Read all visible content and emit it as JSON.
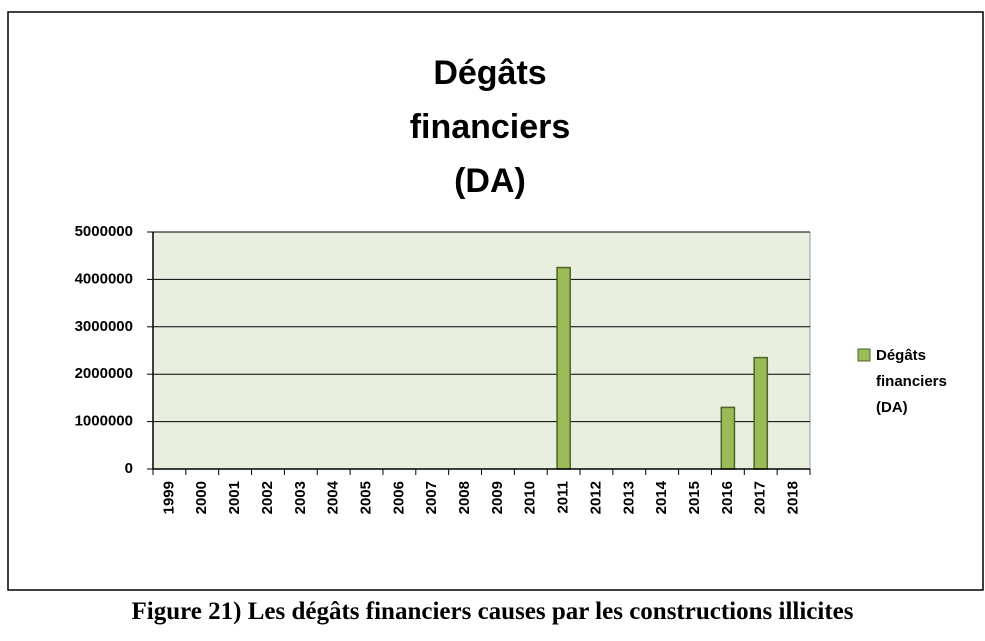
{
  "chart_data": {
    "type": "bar",
    "title": "Dégâts financiers (DA)",
    "categories": [
      "1999",
      "2000",
      "2001",
      "2002",
      "2003",
      "2004",
      "2005",
      "2006",
      "2007",
      "2008",
      "2009",
      "2010",
      "2011",
      "2012",
      "2013",
      "2014",
      "2015",
      "2016",
      "2017",
      "2018"
    ],
    "series": [
      {
        "name": "Dégâts financiers (DA)",
        "color": "#9bbb59",
        "values": [
          0,
          0,
          0,
          0,
          0,
          0,
          0,
          0,
          0,
          0,
          0,
          0,
          4250000,
          0,
          0,
          0,
          0,
          1300000,
          2350000,
          0
        ]
      }
    ],
    "ylim": [
      0,
      5000000
    ],
    "yticks": [
      0,
      1000000,
      2000000,
      3000000,
      4000000,
      5000000
    ],
    "grid": true,
    "legend": "right"
  },
  "caption": "Figure 21) Les dégâts financiers causes par les constructions illicites"
}
